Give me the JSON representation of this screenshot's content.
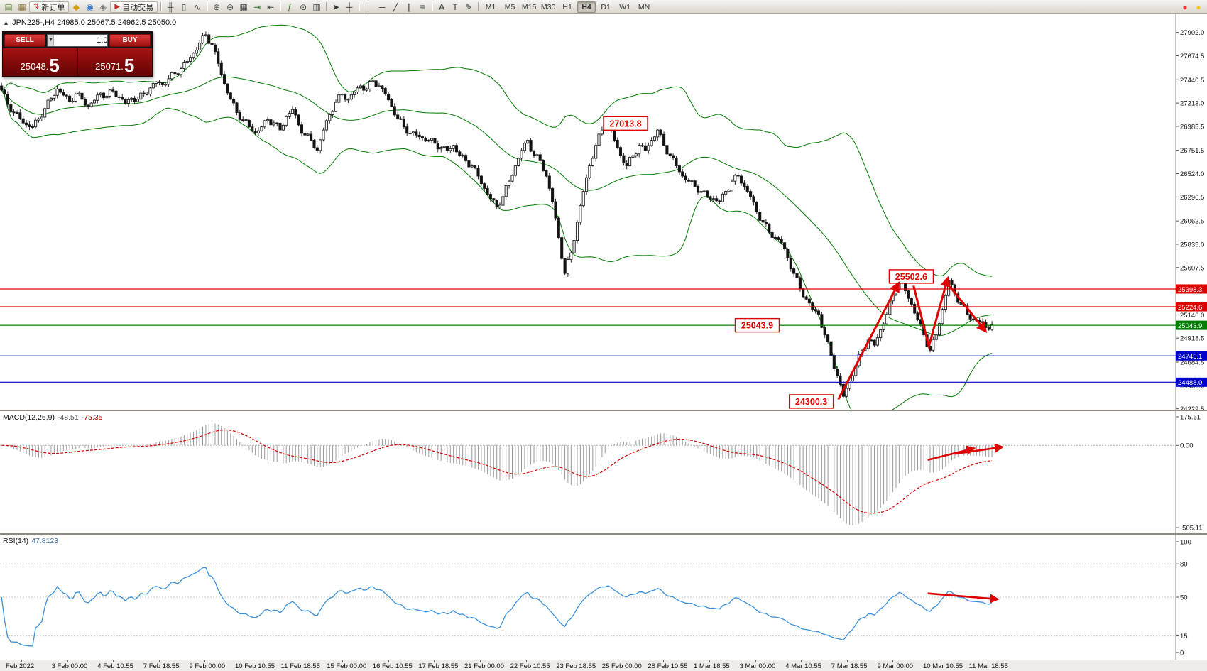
{
  "toolbar": {
    "items": [
      {
        "type": "icon",
        "name": "new-chart-icon",
        "glyph": "▤",
        "color": "#6b8f3e"
      },
      {
        "type": "icon",
        "name": "chart-profiles-icon",
        "glyph": "▦",
        "color": "#8f7a3e"
      },
      {
        "type": "button",
        "name": "new-order-button",
        "glyph": "⇅",
        "glyph_color": "#c03030",
        "label": "新订单"
      },
      {
        "type": "icon",
        "name": "mql5-market-icon",
        "glyph": "◆",
        "color": "#d4a017"
      },
      {
        "type": "icon",
        "name": "community-icon",
        "glyph": "◉",
        "color": "#3a7bd5"
      },
      {
        "type": "icon",
        "name": "search-icon",
        "glyph": "◈",
        "color": "#777777"
      },
      {
        "type": "button",
        "name": "autotrade-button",
        "glyph": "▶",
        "glyph_color": "#c62828",
        "label": "自动交易"
      },
      {
        "type": "sep"
      },
      {
        "type": "icon",
        "name": "bar-chart-icon",
        "glyph": "╫",
        "color": "#444444"
      },
      {
        "type": "icon",
        "name": "candlestick-chart-icon",
        "glyph": "▯",
        "color": "#444444"
      },
      {
        "type": "icon",
        "name": "line-chart-icon",
        "glyph": "∿",
        "color": "#444444"
      },
      {
        "type": "sep"
      },
      {
        "type": "icon",
        "name": "zoom-in-icon",
        "glyph": "⊕",
        "color": "#444444"
      },
      {
        "type": "icon",
        "name": "zoom-out-icon",
        "glyph": "⊖",
        "color": "#444444"
      },
      {
        "type": "icon",
        "name": "tile-windows-icon",
        "glyph": "▦",
        "color": "#444444"
      },
      {
        "type": "icon",
        "name": "auto-scroll-icon",
        "glyph": "⇥",
        "color": "#2e7d32"
      },
      {
        "type": "icon",
        "name": "chart-shift-icon",
        "glyph": "⇤",
        "color": "#444444"
      },
      {
        "type": "sep"
      },
      {
        "type": "icon",
        "name": "indicators-icon",
        "glyph": "ƒ",
        "color": "#2e7d32"
      },
      {
        "type": "icon",
        "name": "periods-icon",
        "glyph": "⊙",
        "color": "#444444"
      },
      {
        "type": "icon",
        "name": "templates-icon",
        "glyph": "▥",
        "color": "#444444"
      },
      {
        "type": "sep"
      },
      {
        "type": "icon",
        "name": "cursor-icon",
        "glyph": "➤",
        "color": "#333333"
      },
      {
        "type": "icon",
        "name": "crosshair-icon",
        "glyph": "┼",
        "color": "#333333"
      },
      {
        "type": "sep"
      },
      {
        "type": "icon",
        "name": "vertical-line-icon",
        "glyph": "│",
        "color": "#333333"
      },
      {
        "type": "icon",
        "name": "horizontal-line-icon",
        "glyph": "─",
        "color": "#333333"
      },
      {
        "type": "icon",
        "name": "trendline-icon",
        "glyph": "╱",
        "color": "#333333"
      },
      {
        "type": "icon",
        "name": "channel-icon",
        "glyph": "∥",
        "color": "#333333"
      },
      {
        "type": "icon",
        "name": "fibonacci-icon",
        "glyph": "≡",
        "color": "#333333"
      },
      {
        "type": "sep"
      },
      {
        "type": "icon",
        "name": "text-icon",
        "glyph": "A",
        "color": "#333333"
      },
      {
        "type": "icon",
        "name": "text-label-icon",
        "glyph": "T",
        "color": "#333333"
      },
      {
        "type": "icon",
        "name": "arrows-tool-icon",
        "glyph": "✎",
        "color": "#333333"
      },
      {
        "type": "sep"
      },
      {
        "type": "timeframes"
      },
      {
        "type": "spacer"
      },
      {
        "type": "icon",
        "name": "status-alert-icon",
        "glyph": "●",
        "color": "#e53935"
      },
      {
        "type": "icon",
        "name": "status-news-icon",
        "glyph": "●",
        "color": "#fbc02d"
      }
    ],
    "timeframes": [
      "M1",
      "M5",
      "M15",
      "M30",
      "H1",
      "H4",
      "D1",
      "W1",
      "MN"
    ],
    "active_timeframe": "H4"
  },
  "chart_ui": {
    "collapse_icon": "▴"
  },
  "order_panel": {
    "sell_label": "SELL",
    "buy_label": "BUY",
    "volume": "1.00",
    "down_glyph": "▼",
    "up_glyph": "▲",
    "sell_price": "25048.",
    "sell_price_big": "5",
    "buy_price": "25071.",
    "buy_price_big": "5"
  },
  "chart_data": [
    {
      "type": "candlestick",
      "title": "JPN225-,H4",
      "ohlc_text": "24985.0 25067.5 24962.5 25050.0",
      "open": "24985.0",
      "high": "25067.5",
      "low": "24962.5",
      "close": "25050.0",
      "bollinger": {
        "period": 20,
        "deviation": 2
      },
      "closes": [
        27340,
        27200,
        27120,
        27060,
        27000,
        26980,
        27060,
        27160,
        27260,
        27350,
        27290,
        27230,
        27300,
        27250,
        27180,
        27240,
        27310,
        27280,
        27330,
        27270,
        27210,
        27260,
        27250,
        27300,
        27360,
        27420,
        27390,
        27450,
        27500,
        27550,
        27620,
        27700,
        27800,
        27880,
        27780,
        27600,
        27400,
        27250,
        27120,
        27050,
        26980,
        26920,
        26980,
        27050,
        27020,
        26950,
        27080,
        27150,
        27000,
        26900,
        26850,
        26750,
        26950,
        27100,
        27220,
        27300,
        27250,
        27320,
        27380,
        27350,
        27430,
        27380,
        27300,
        27180,
        27060,
        26980,
        26920,
        26900,
        26870,
        26850,
        26820,
        26780,
        26750,
        26800,
        26700,
        26650,
        26600,
        26500,
        26380,
        26280,
        26200,
        26300,
        26450,
        26600,
        26750,
        26850,
        26700,
        26650,
        26500,
        26250,
        25900,
        25550,
        25750,
        26050,
        26350,
        26600,
        26800,
        26950,
        27010,
        26850,
        26700,
        26600,
        26700,
        26800,
        26750,
        26850,
        26950,
        26800,
        26700,
        26600,
        26500,
        26450,
        26400,
        26350,
        26300,
        26280,
        26250,
        26350,
        26450,
        26500,
        26400,
        26300,
        26150,
        26050,
        25950,
        25900,
        25850,
        25700,
        25550,
        25400,
        25300,
        25200,
        25150,
        24950,
        24750,
        24550,
        24350,
        24500,
        24650,
        24800,
        24900,
        24850,
        25000,
        25150,
        25350,
        25500,
        25380,
        25250,
        25100,
        24950,
        24800,
        24950,
        25200,
        25480,
        25350,
        25250,
        25150,
        25100,
        25080,
        25020,
        25050
      ],
      "price_axis": {
        "min": 24220,
        "max": 28080,
        "labels": [
          {
            "v": 27902.0,
            "t": "27902.0"
          },
          {
            "v": 27674.5,
            "t": "27674.5"
          },
          {
            "v": 27440.5,
            "t": "27440.5"
          },
          {
            "v": 27213.0,
            "t": "27213.0"
          },
          {
            "v": 26985.5,
            "t": "26985.5"
          },
          {
            "v": 26751.5,
            "t": "26751.5"
          },
          {
            "v": 26524.0,
            "t": "26524.0"
          },
          {
            "v": 26296.5,
            "t": "26296.5"
          },
          {
            "v": 26062.5,
            "t": "26062.5"
          },
          {
            "v": 25835.0,
            "t": "25835.0"
          },
          {
            "v": 25607.5,
            "t": "25607.5"
          },
          {
            "v": 25146.0,
            "t": "25146.0"
          },
          {
            "v": 24918.5,
            "t": "24918.5"
          },
          {
            "v": 24684.5,
            "t": "24684.5"
          },
          {
            "v": 24456.0,
            "t": "24456.0"
          },
          {
            "v": 24229.5,
            "t": "24229.5"
          }
        ]
      },
      "levels": [
        {
          "price": 25398.3,
          "label": "25398.3",
          "color": "#dd0000"
        },
        {
          "price": 25224.6,
          "label": "25224.6",
          "color": "#dd0000"
        },
        {
          "price": 25043.9,
          "label": "25043.9",
          "color": "#008000"
        },
        {
          "price": 24745.1,
          "label": "24745.1",
          "color": "#0000cc"
        },
        {
          "price": 24488.0,
          "label": "24488.0",
          "color": "#0000cc"
        }
      ],
      "annotations": [
        {
          "text": "27013.8",
          "x": 0.532,
          "price": 27014
        },
        {
          "text": "25502.6",
          "x": 0.775,
          "price": 25520
        },
        {
          "text": "25043.9",
          "x": 0.644,
          "price": 25043.9
        },
        {
          "text": "24300.3",
          "x": 0.69,
          "price": 24300.3
        }
      ],
      "time_labels": [
        "Feb 2022",
        "3 Feb 00:00",
        "4 Feb 10:55",
        "7 Feb 18:55",
        "9 Feb 00:00",
        "10 Feb 10:55",
        "11 Feb 18:55",
        "15 Feb 00:00",
        "16 Feb 10:55",
        "17 Feb 18:55",
        "21 Feb 00:00",
        "22 Feb 10:55",
        "23 Feb 18:55",
        "25 Feb 00:00",
        "28 Feb 10:55",
        "1 Mar 18:55",
        "3 Mar 00:00",
        "4 Mar 10:55",
        "7 Mar 18:55",
        "9 Mar 00:00",
        "10 Mar 10:55",
        "11 Mar 18:55"
      ]
    },
    {
      "type": "macd",
      "name": "MACD(12,26,9)",
      "fast": 12,
      "slow": 26,
      "signal": 9,
      "value_macd": "-48.51",
      "value_signal": "-75.35",
      "range": {
        "min": -505.11,
        "max": 175.61
      },
      "axis": [
        {
          "v": 175.61,
          "t": "175.61"
        },
        {
          "v": 0,
          "t": "0.00"
        },
        {
          "v": -505.11,
          "t": "-505.11"
        }
      ]
    },
    {
      "type": "rsi",
      "name": "RSI(14)",
      "period": 14,
      "value": "47.8123",
      "range": {
        "min": 0,
        "max": 100
      },
      "levels": [
        80,
        50,
        15
      ],
      "axis": [
        {
          "v": 100,
          "t": "100"
        },
        {
          "v": 80,
          "t": "80"
        },
        {
          "v": 50,
          "t": "50"
        },
        {
          "v": 15,
          "t": "15"
        },
        {
          "v": 0,
          "t": "0"
        }
      ]
    }
  ],
  "drawings": {
    "chart_arrows": [
      {
        "points": [
          [
            0.713,
            24320
          ],
          [
            0.764,
            25450
          ]
        ],
        "head": true
      },
      {
        "points": [
          [
            0.777,
            25430
          ],
          [
            0.79,
            24840
          ],
          [
            0.806,
            25500
          ]
        ],
        "head": true
      },
      {
        "points": [
          [
            0.808,
            25420
          ],
          [
            0.838,
            24990
          ]
        ],
        "head": true
      }
    ],
    "macd_arrows": [
      {
        "points": [
          [
            0.789,
            0.4
          ],
          [
            0.828,
            0.306
          ]
        ],
        "head": true
      },
      {
        "points": [
          [
            0.812,
            0.35
          ],
          [
            0.852,
            0.295
          ]
        ],
        "head": true
      }
    ],
    "rsi_arrows": [
      {
        "points": [
          [
            0.789,
            0.47
          ],
          [
            0.848,
            0.516
          ]
        ],
        "head": true
      }
    ]
  },
  "colors": {
    "bull": "#ffffff",
    "bear": "#111111",
    "wick": "#1a1a1a",
    "bollinger": "#007a00",
    "macd_hist": "#9a9a9a",
    "macd_signal": "#d40000",
    "rsi_line": "#3a8fd9",
    "arrow": "#e00000",
    "axis_text": "#111111"
  }
}
